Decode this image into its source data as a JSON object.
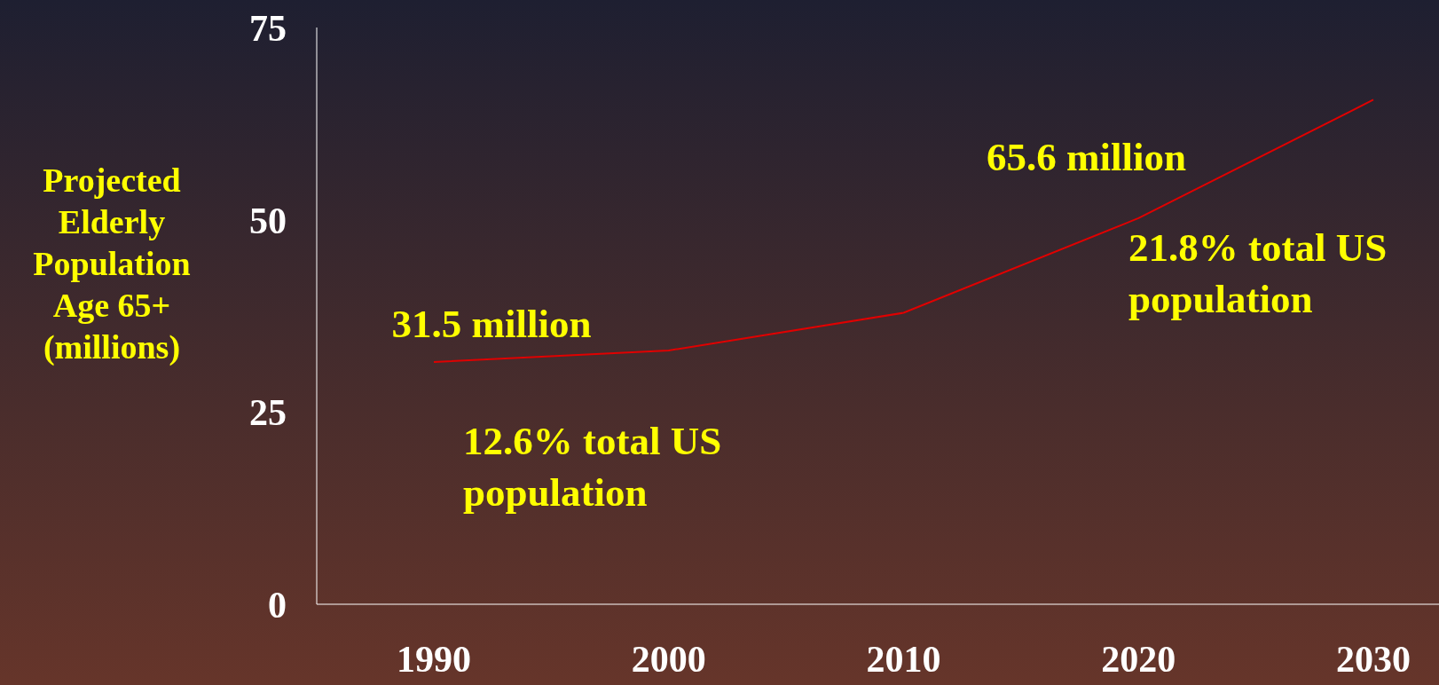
{
  "chart_data": {
    "type": "line",
    "ylabel": "Projected Elderly Population Age 65+ (millions)",
    "categories": [
      "1990",
      "2000",
      "2010",
      "2020",
      "2030"
    ],
    "series": [
      {
        "color": "#e00000",
        "values": [
          31.5,
          33,
          37.9,
          50.2,
          65.6
        ]
      }
    ],
    "ylim": [
      0,
      75
    ],
    "yticks": [
      0,
      25,
      50,
      75
    ],
    "grid": false,
    "legend": false,
    "marker": "none",
    "annotations": [
      {
        "text": "31.5 million",
        "x": "1990",
        "y": 31.5
      },
      "65.6 million",
      "12.6% total US population",
      "21.8% total US population"
    ]
  }
}
